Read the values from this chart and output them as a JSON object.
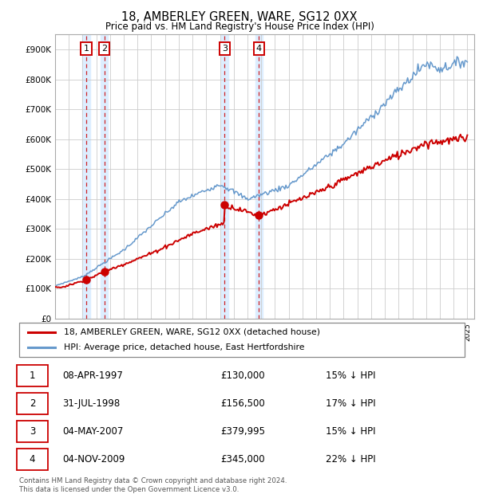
{
  "title1": "18, AMBERLEY GREEN, WARE, SG12 0XX",
  "title2": "Price paid vs. HM Land Registry's House Price Index (HPI)",
  "ylim": [
    0,
    950000
  ],
  "yticks": [
    0,
    100000,
    200000,
    300000,
    400000,
    500000,
    600000,
    700000,
    800000,
    900000
  ],
  "ytick_labels": [
    "£0",
    "£100K",
    "£200K",
    "£300K",
    "£400K",
    "£500K",
    "£600K",
    "£700K",
    "£800K",
    "£900K"
  ],
  "xmin": 1995.0,
  "xmax": 2025.5,
  "sale_dates": [
    1997.27,
    1998.58,
    2007.34,
    2009.84
  ],
  "sale_prices": [
    130000,
    156500,
    379995,
    345000
  ],
  "sale_labels": [
    "1",
    "2",
    "3",
    "4"
  ],
  "hpi_color": "#6699cc",
  "price_color": "#cc0000",
  "shade_color": "#ddeeff",
  "legend_label_price": "18, AMBERLEY GREEN, WARE, SG12 0XX (detached house)",
  "legend_label_hpi": "HPI: Average price, detached house, East Hertfordshire",
  "table_rows": [
    [
      "1",
      "08-APR-1997",
      "£130,000",
      "15% ↓ HPI"
    ],
    [
      "2",
      "31-JUL-1998",
      "£156,500",
      "17% ↓ HPI"
    ],
    [
      "3",
      "04-MAY-2007",
      "£379,995",
      "15% ↓ HPI"
    ],
    [
      "4",
      "04-NOV-2009",
      "£345,000",
      "22% ↓ HPI"
    ]
  ],
  "footer": "Contains HM Land Registry data © Crown copyright and database right 2024.\nThis data is licensed under the Open Government Licence v3.0."
}
